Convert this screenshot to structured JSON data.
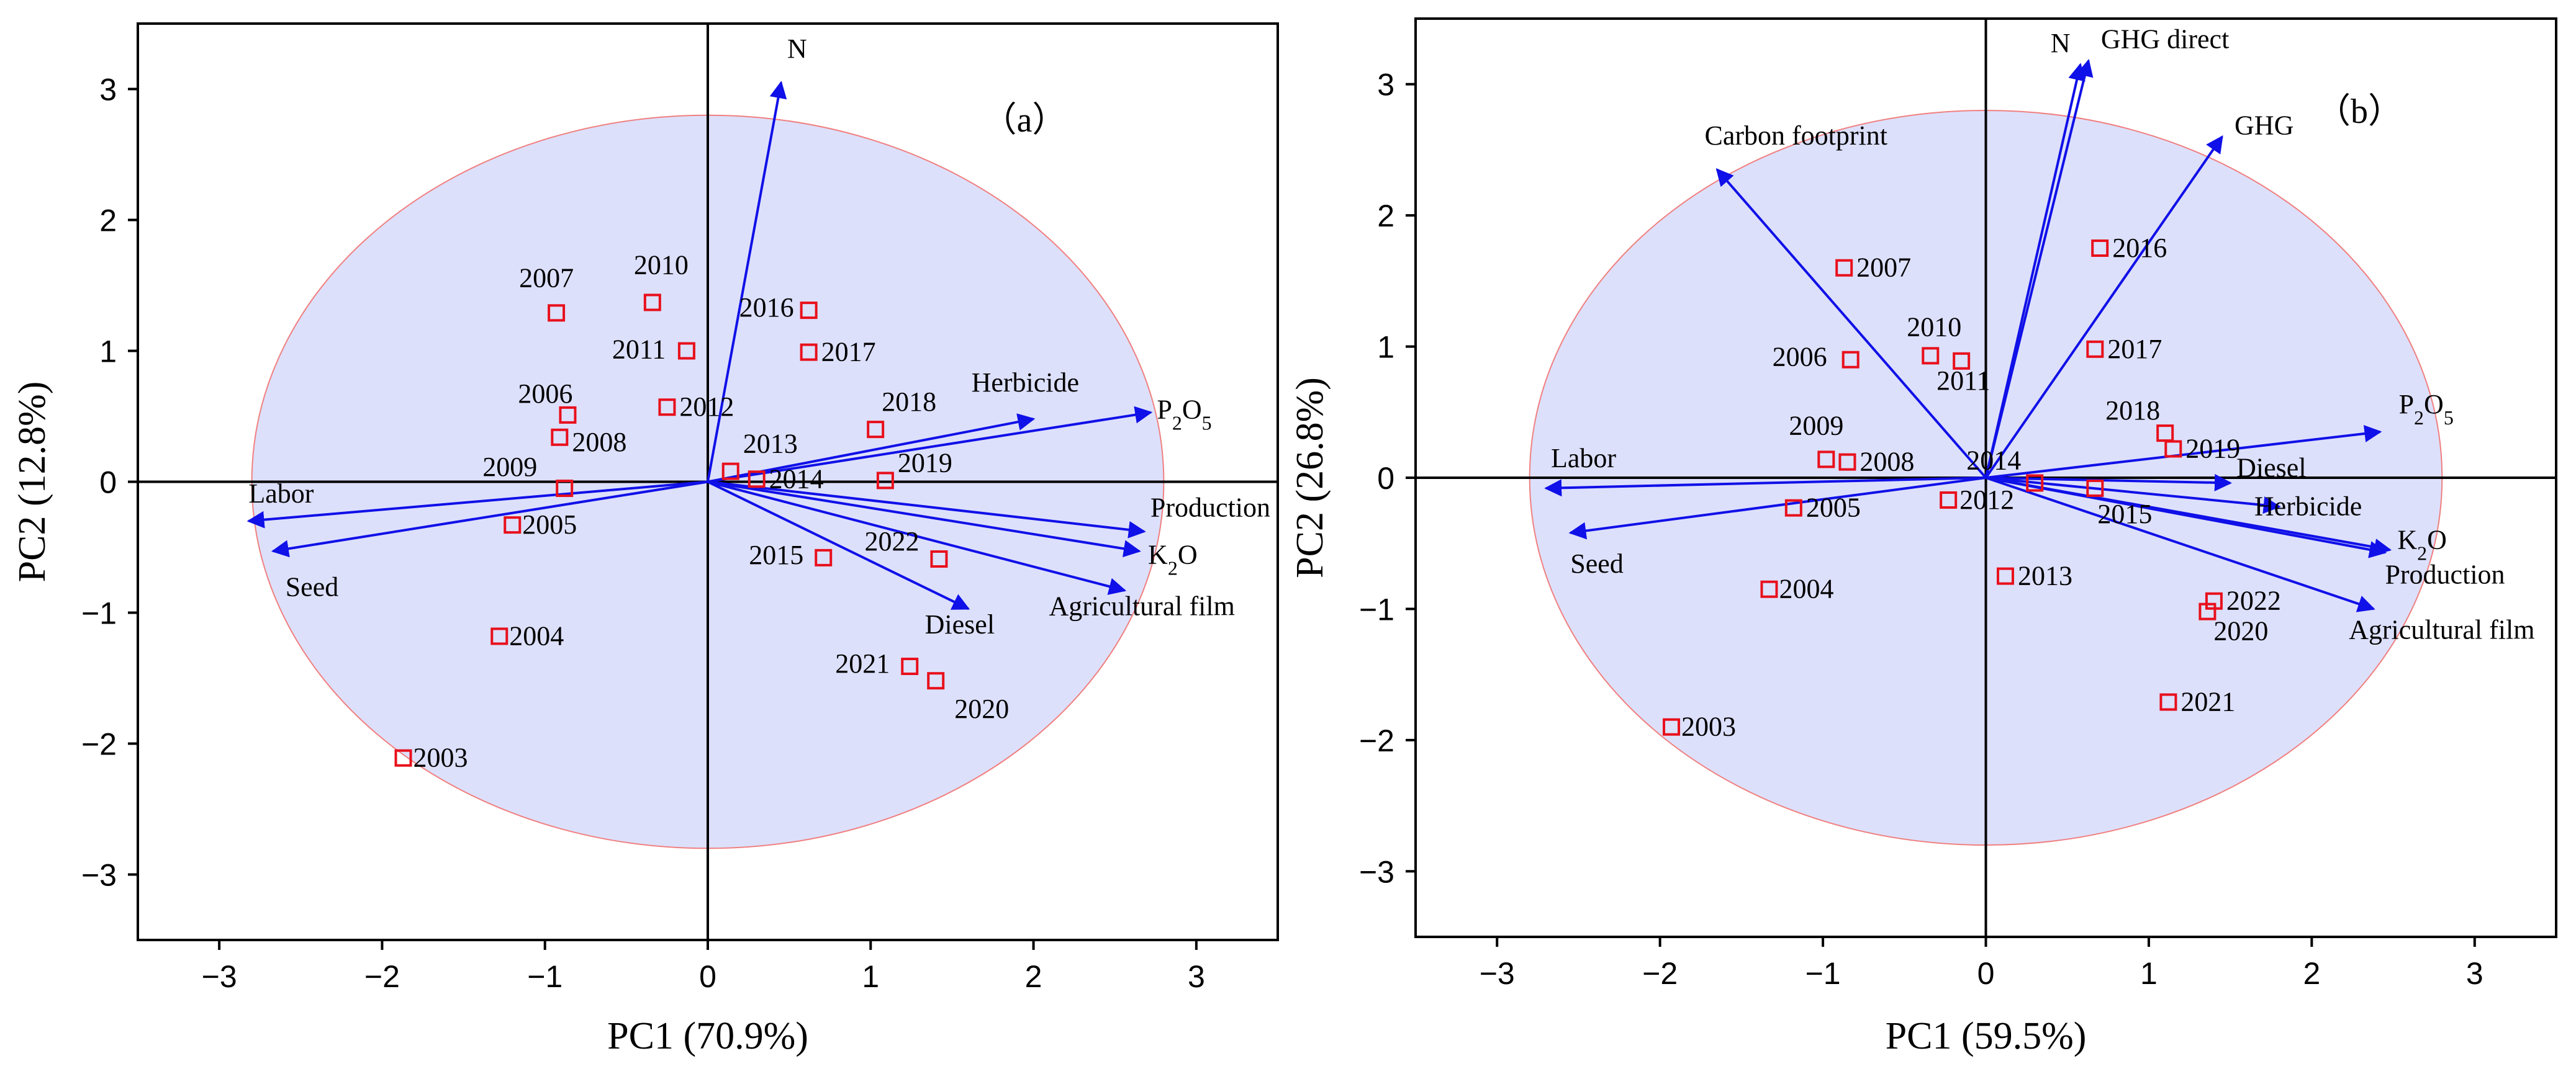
{
  "colors": {
    "ellipse_fill": "#dde0fb",
    "ellipse_stroke": "#f08080",
    "arrow": "#1010e8",
    "point": "#e8101c"
  },
  "chart_data": [
    {
      "type": "scatter",
      "panel_label": "（a）",
      "xlabel": "PC1 (70.9%)",
      "ylabel": "PC2 (12.8%)",
      "xlim": [
        -3.5,
        3.5
      ],
      "ylim": [
        -3.5,
        3.5
      ],
      "xticks": [
        -3,
        -2,
        -1,
        0,
        1,
        2,
        3
      ],
      "yticks": [
        -3,
        -2,
        -1,
        0,
        1,
        2,
        3
      ],
      "ellipse": {
        "cx": 0,
        "cy": 0,
        "rx": 2.8,
        "ry": 2.8
      },
      "points": [
        {
          "label": "2003",
          "x": -1.87,
          "y": -2.11
        },
        {
          "label": "2004",
          "x": -1.28,
          "y": -1.18
        },
        {
          "label": "2005",
          "x": -1.2,
          "y": -0.33
        },
        {
          "label": "2006",
          "x": -0.86,
          "y": 0.51
        },
        {
          "label": "2007",
          "x": -0.93,
          "y": 1.29
        },
        {
          "label": "2008",
          "x": -0.91,
          "y": 0.34
        },
        {
          "label": "2009",
          "x": -0.88,
          "y": -0.05
        },
        {
          "label": "2010",
          "x": -0.34,
          "y": 1.37
        },
        {
          "label": "2011",
          "x": -0.13,
          "y": 1.0
        },
        {
          "label": "2012",
          "x": -0.25,
          "y": 0.57
        },
        {
          "label": "2013",
          "x": 0.14,
          "y": 0.08
        },
        {
          "label": "2014",
          "x": 0.3,
          "y": 0.02
        },
        {
          "label": "2015",
          "x": 0.71,
          "y": -0.58
        },
        {
          "label": "2016",
          "x": 0.62,
          "y": 1.31
        },
        {
          "label": "2017",
          "x": 0.62,
          "y": 0.99
        },
        {
          "label": "2018",
          "x": 1.03,
          "y": 0.4
        },
        {
          "label": "2019",
          "x": 1.09,
          "y": 0.01
        },
        {
          "label": "2020",
          "x": 1.4,
          "y": -1.52
        },
        {
          "label": "2021",
          "x": 1.24,
          "y": -1.41
        },
        {
          "label": "2022",
          "x": 1.42,
          "y": -0.59
        }
      ],
      "vectors": [
        {
          "label": "N",
          "x": 0.45,
          "y": 3.05
        },
        {
          "label": "Herbicide",
          "x": 2.0,
          "y": 0.48
        },
        {
          "label": "P2O5",
          "x": 2.72,
          "y": 0.53
        },
        {
          "label": "Production",
          "x": 2.68,
          "y": -0.38
        },
        {
          "label": "K2O",
          "x": 2.65,
          "y": -0.53
        },
        {
          "label": "Agricultural film",
          "x": 2.56,
          "y": -0.83
        },
        {
          "label": "Diesel",
          "x": 1.6,
          "y": -0.97
        },
        {
          "label": "Labor",
          "x": -2.82,
          "y": -0.3
        },
        {
          "label": "Seed",
          "x": -2.67,
          "y": -0.53
        }
      ]
    },
    {
      "type": "scatter",
      "panel_label": "（b）",
      "xlabel": "PC1 (59.5%)",
      "ylabel": "PC2 (26.8%)",
      "xlim": [
        -3.5,
        3.5
      ],
      "ylim": [
        -3.5,
        3.5
      ],
      "xticks": [
        -3,
        -2,
        -1,
        0,
        1,
        2,
        3
      ],
      "yticks": [
        -3,
        -2,
        -1,
        0,
        1,
        2,
        3
      ],
      "ellipse": {
        "cx": 0,
        "cy": 0,
        "rx": 2.8,
        "ry": 2.8
      },
      "points": [
        {
          "label": "2003",
          "x": -1.93,
          "y": -1.9
        },
        {
          "label": "2004",
          "x": -1.33,
          "y": -0.85
        },
        {
          "label": "2005",
          "x": -1.18,
          "y": -0.23
        },
        {
          "label": "2006",
          "x": -0.83,
          "y": 0.9
        },
        {
          "label": "2007",
          "x": -0.87,
          "y": 1.6
        },
        {
          "label": "2008",
          "x": -0.85,
          "y": 0.12
        },
        {
          "label": "2009",
          "x": -0.98,
          "y": 0.14
        },
        {
          "label": "2010",
          "x": -0.34,
          "y": 0.93
        },
        {
          "label": "2011",
          "x": -0.15,
          "y": 0.89
        },
        {
          "label": "2012",
          "x": -0.23,
          "y": -0.17
        },
        {
          "label": "2013",
          "x": 0.12,
          "y": -0.75
        },
        {
          "label": "2014",
          "x": 0.3,
          "y": -0.04
        },
        {
          "label": "2015",
          "x": 0.67,
          "y": -0.08
        },
        {
          "label": "2016",
          "x": 0.7,
          "y": 1.75
        },
        {
          "label": "2017",
          "x": 0.67,
          "y": 0.98
        },
        {
          "label": "2018",
          "x": 1.1,
          "y": 0.34
        },
        {
          "label": "2019",
          "x": 1.15,
          "y": 0.22
        },
        {
          "label": "2020",
          "x": 1.36,
          "y": -1.02
        },
        {
          "label": "2021",
          "x": 1.12,
          "y": -1.71
        },
        {
          "label": "2022",
          "x": 1.4,
          "y": -0.94
        }
      ],
      "vectors": [
        {
          "label": "N",
          "x": 0.58,
          "y": 3.15
        },
        {
          "label": "GHG direct",
          "x": 0.63,
          "y": 3.18
        },
        {
          "label": "GHG",
          "x": 1.45,
          "y": 2.6
        },
        {
          "label": "Carbon footprint",
          "x": -1.65,
          "y": 2.35
        },
        {
          "label": "P2O5",
          "x": 2.42,
          "y": 0.35
        },
        {
          "label": "Diesel",
          "x": 1.5,
          "y": -0.04
        },
        {
          "label": "Herbicide",
          "x": 1.8,
          "y": -0.22
        },
        {
          "label": "K2O",
          "x": 2.48,
          "y": -0.55
        },
        {
          "label": "Production",
          "x": 2.45,
          "y": -0.57
        },
        {
          "label": "Agricultural film",
          "x": 2.38,
          "y": -1.0
        },
        {
          "label": "Labor",
          "x": -2.7,
          "y": -0.08
        },
        {
          "label": "Seed",
          "x": -2.55,
          "y": -0.42
        }
      ]
    }
  ]
}
